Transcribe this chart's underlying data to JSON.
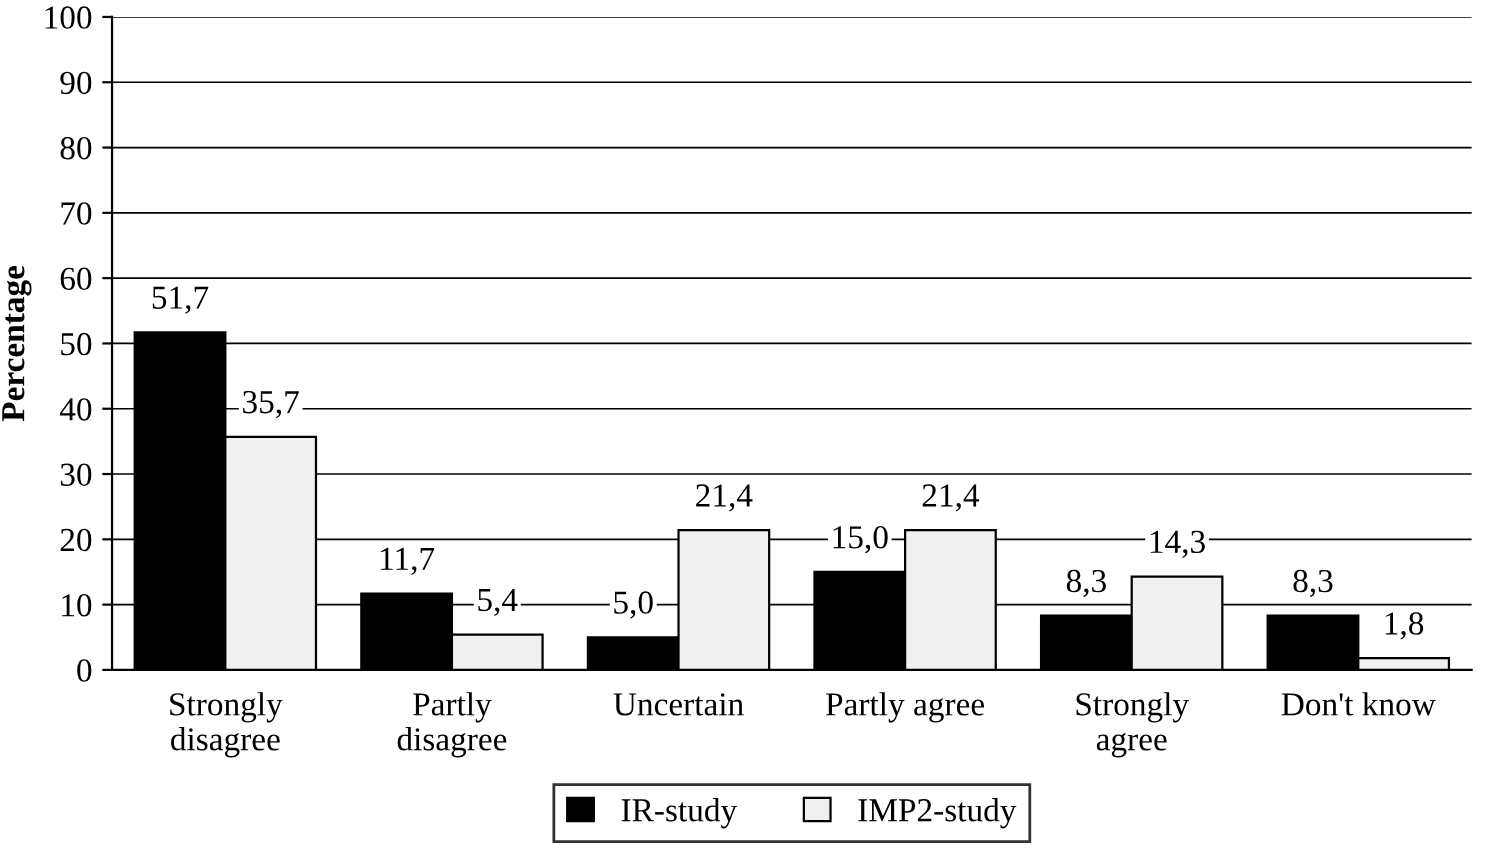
{
  "chart_data": {
    "type": "bar",
    "ylabel": "Percentage",
    "categories": [
      "Strongly\ndisagree",
      "Partly\ndisagree",
      "Uncertain",
      "Partly agree",
      "Strongly\nagree",
      "Don't know"
    ],
    "series": [
      {
        "name": "IR-study",
        "color": "#000000",
        "values": [
          51.7,
          11.7,
          5.0,
          15.0,
          8.3,
          8.3
        ],
        "value_labels": [
          "51,7",
          "11,7",
          "5,0",
          "15,0",
          "8,3",
          "8,3"
        ]
      },
      {
        "name": "IMP2-study",
        "color": "#f0f0f0",
        "values": [
          35.7,
          5.4,
          21.4,
          21.4,
          14.3,
          1.8
        ],
        "value_labels": [
          "35,7",
          "5,4",
          "21,4",
          "21,4",
          "14,3",
          "1,8"
        ]
      }
    ],
    "ylim": [
      0,
      100
    ],
    "yticks": [
      0,
      10,
      20,
      30,
      40,
      50,
      60,
      70,
      80,
      90,
      100
    ],
    "grid": "y",
    "legend": "bottom"
  }
}
